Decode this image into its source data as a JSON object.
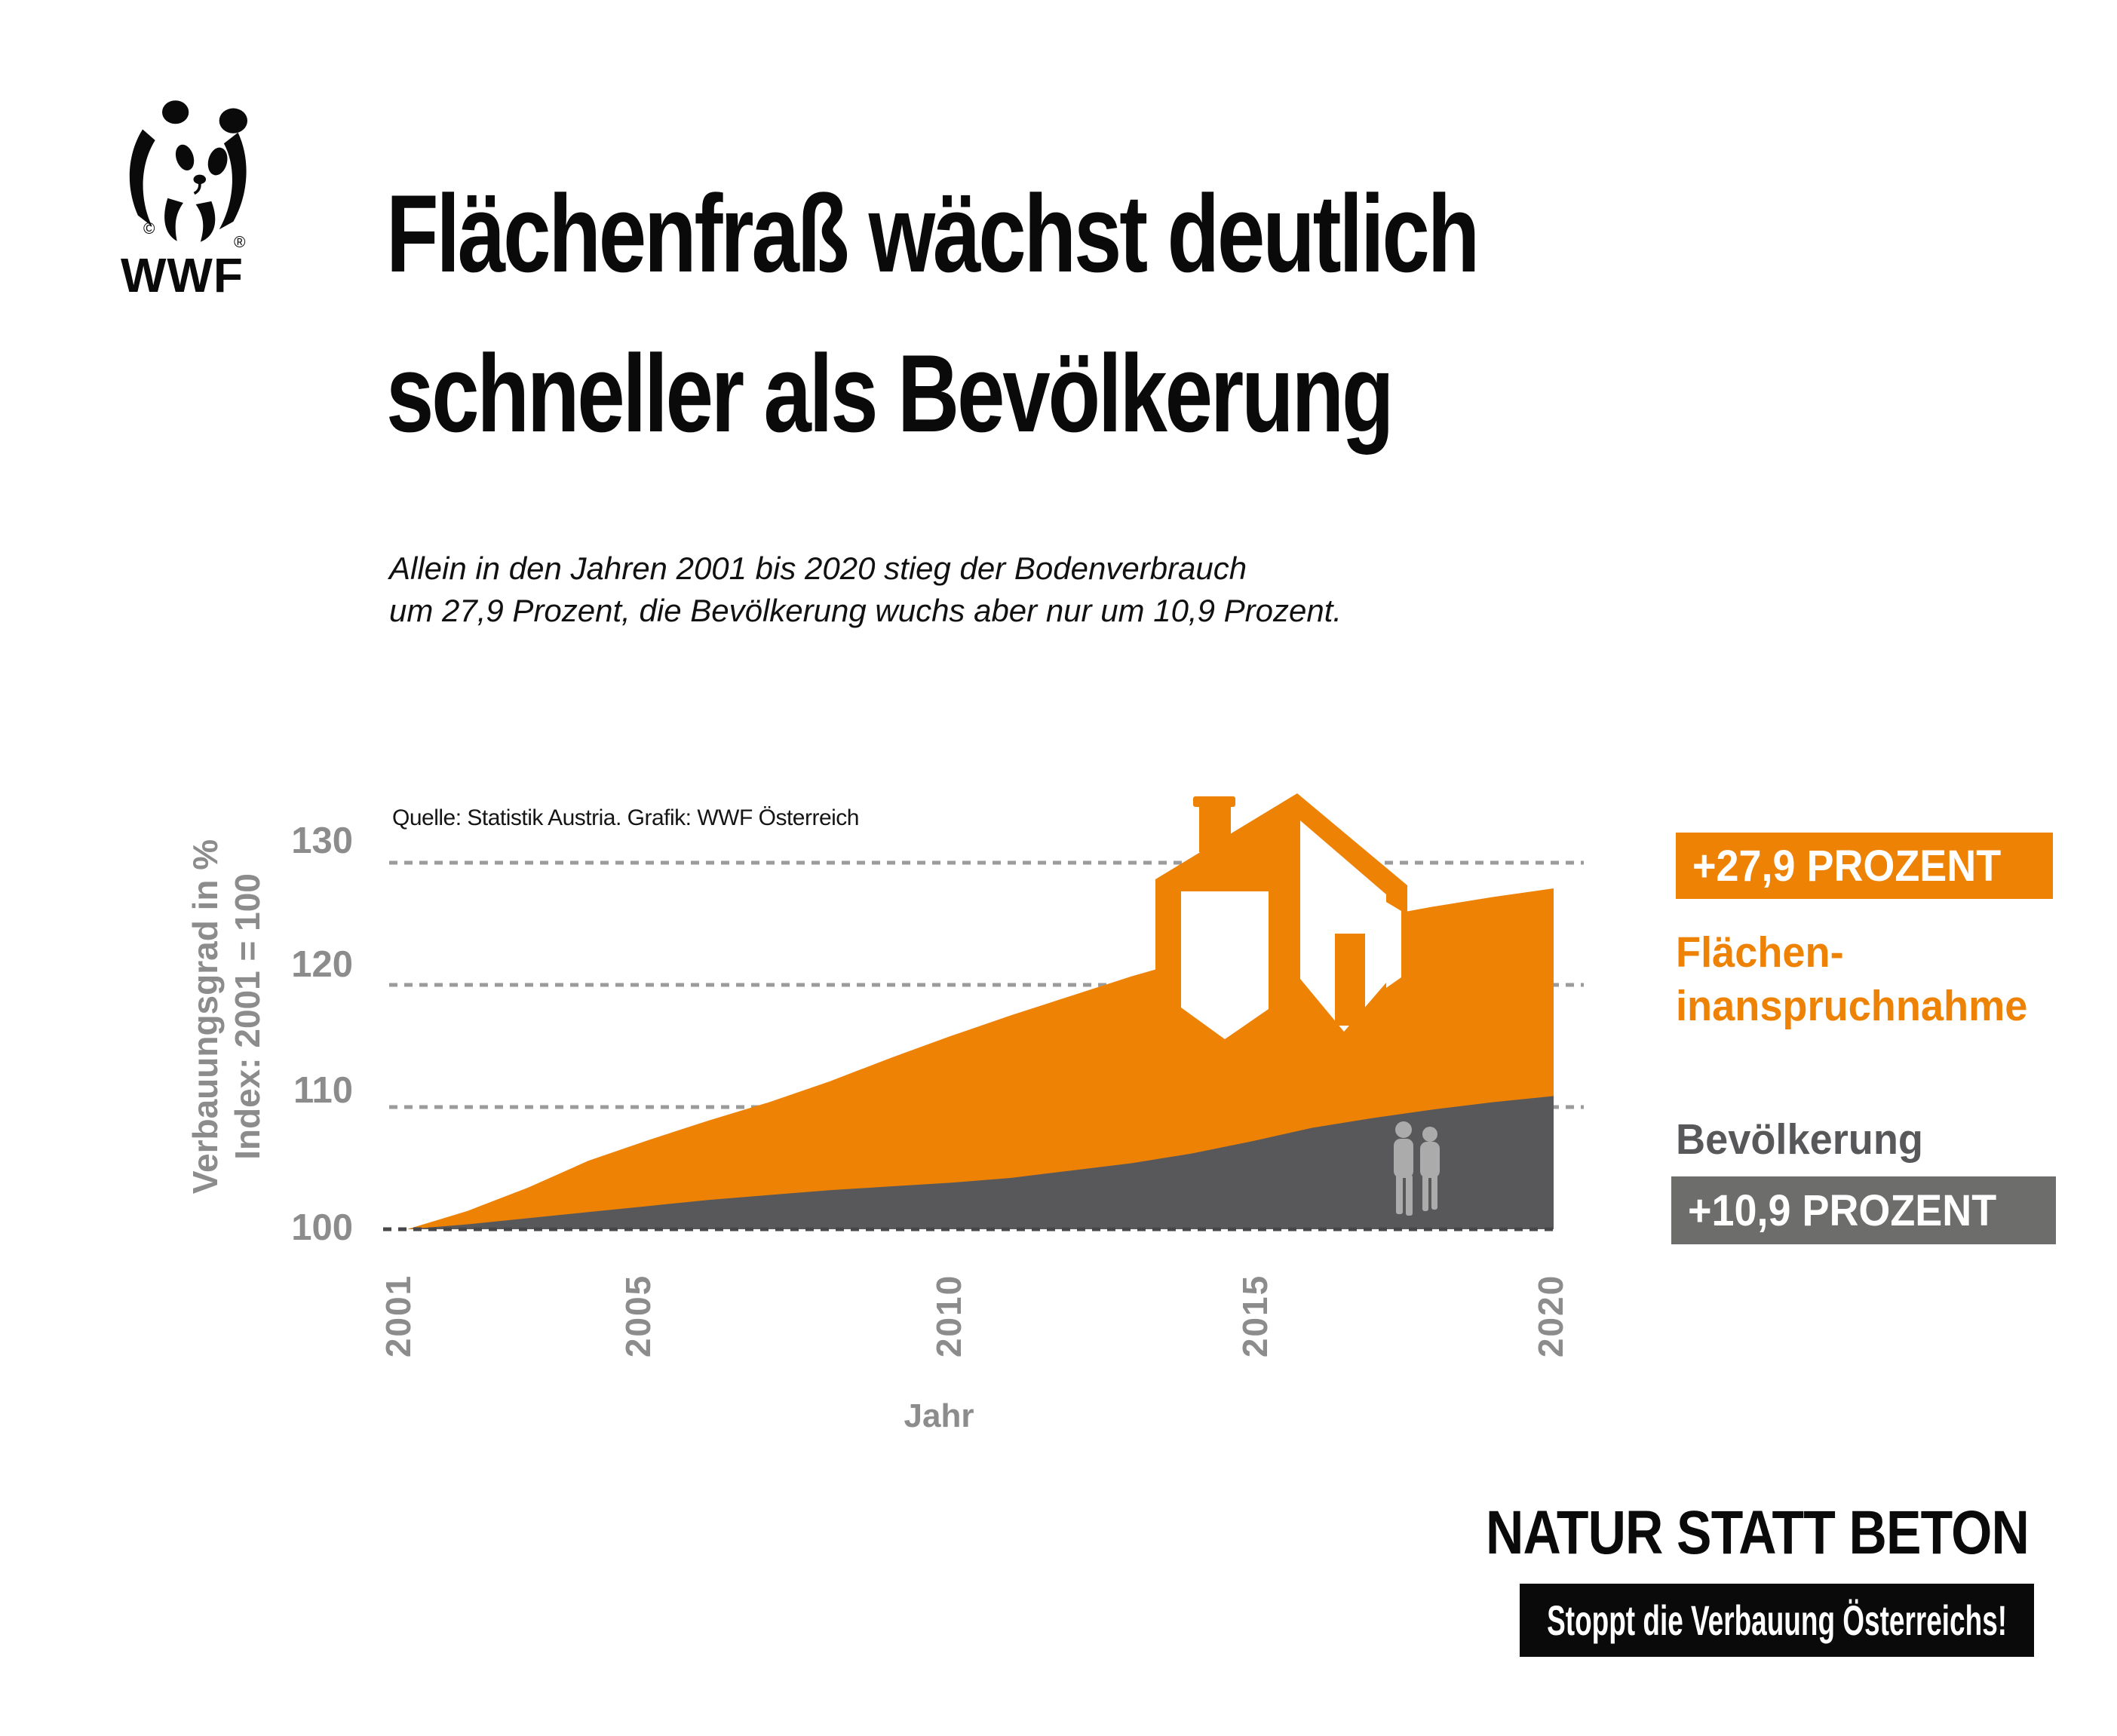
{
  "logo": {
    "wordmark": "WWF",
    "copyright_mark": "©",
    "registered_mark": "®"
  },
  "title": {
    "line1": "Flächenfraß wächst deutlich",
    "line2": "schneller als Bevölkerung"
  },
  "subtitle": {
    "line1": "Allein in den Jahren 2001 bis 2020 stieg der Bodenverbrauch",
    "line2": "um 27,9 Prozent, die Bevölkerung wuchs aber nur um 10,9 Prozent."
  },
  "source_note": "Quelle: Statistik Austria. Grafik: WWF Österreich",
  "chart_data": {
    "type": "area",
    "x": [
      2001,
      2002,
      2003,
      2004,
      2005,
      2006,
      2007,
      2008,
      2009,
      2010,
      2011,
      2012,
      2013,
      2014,
      2015,
      2016,
      2017,
      2018,
      2019,
      2020
    ],
    "series": [
      {
        "name": "Flächeninanspruchnahme",
        "color": "#EE8205",
        "values": [
          100,
          101.5,
          103.4,
          105.6,
          107.3,
          108.9,
          110.4,
          112.1,
          114.0,
          115.8,
          117.5,
          119.1,
          120.7,
          122.1,
          123.4,
          124.5,
          125.5,
          126.4,
          127.2,
          127.9
        ]
      },
      {
        "name": "Bevölkerung",
        "color": "#58585A",
        "values": [
          100,
          100.4,
          100.9,
          101.4,
          101.9,
          102.4,
          102.8,
          103.2,
          103.5,
          103.8,
          104.2,
          104.8,
          105.4,
          106.2,
          107.2,
          108.3,
          109.1,
          109.8,
          110.4,
          110.9
        ]
      }
    ],
    "final_change_percent": {
      "Flächeninanspruchnahme": 27.9,
      "Bevölkerung": 10.9
    },
    "xlabel": "Jahr",
    "ylabel_line1": "Verbauungsgrad in %",
    "ylabel_line2": "Index: 2001 = 100",
    "xticks": [
      2001,
      2005,
      2010,
      2015,
      2020
    ],
    "yticks": [
      100,
      110,
      120,
      130
    ],
    "ylim": [
      100,
      133
    ],
    "grid": "horizontal-dashed",
    "legend_position": "right"
  },
  "legend": {
    "flaeche_badge": "+27,9 PROZENT",
    "flaeche_label_line1": "Flächen-",
    "flaeche_label_line2": "inanspruchnahme",
    "bevoelkerung_label": "Bevölkerung",
    "bevoelkerung_badge": "+10,9 PROZENT"
  },
  "footer": {
    "slogan": "NATUR STATT BETON",
    "campaign": "Stoppt die Verbauung Österreichs!"
  },
  "colors": {
    "orange": "#EE8205",
    "dark_gray": "#58585A",
    "badge_gray": "#6D6E6C",
    "axis_gray": "#8C8C8C",
    "grid_gray": "#9B9B9B",
    "baseline_gray": "#47474A",
    "people_gray": "#ABABAB",
    "black": "#0A0A0A",
    "background": "#FFFFFF"
  }
}
